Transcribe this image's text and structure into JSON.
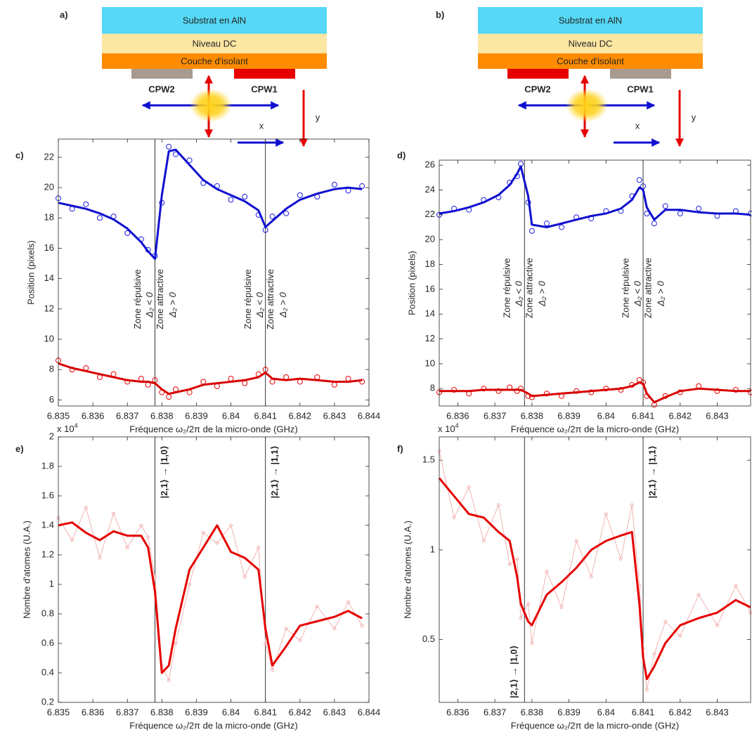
{
  "diagrams": [
    {
      "label": "a)",
      "layers": [
        "Substrat en AlN",
        "Niveau DC",
        "Couche d'isolant"
      ],
      "electrodes": [
        "CPW2",
        "CPW1"
      ],
      "electrode_colors": [
        "#a89a8f",
        "#e60000"
      ],
      "axis_x": "x",
      "axis_y": "y"
    },
    {
      "label": "b)",
      "layers": [
        "Substrat en AlN",
        "Niveau DC",
        "Couche d'isolant"
      ],
      "electrodes": [
        "CPW2",
        "CPW1"
      ],
      "electrode_colors": [
        "#e60000",
        "#a89a8f"
      ],
      "axis_x": "x",
      "axis_y": "y"
    }
  ],
  "chart_data": [
    {
      "type": "line",
      "label": "c)",
      "xlabel": "Fréquence ω₂/2π de la micro-onde (GHz)",
      "ylabel": "Position (pixels)",
      "xlim": [
        6.835,
        6.844
      ],
      "ylim": [
        5.6,
        23.2
      ],
      "xticks": [
        6.835,
        6.836,
        6.837,
        6.838,
        6.839,
        6.84,
        6.841,
        6.842,
        6.843,
        6.844
      ],
      "yticks": [
        6,
        8,
        10,
        12,
        14,
        16,
        18,
        20,
        22
      ],
      "vlines": [
        6.8378,
        6.841
      ],
      "annotation_colors": [
        "#000000",
        "#e60000"
      ],
      "annotations": [
        [
          {
            "text": "Zone répulsive",
            "sub": "Δ₂ < 0"
          },
          {
            "text": "Zone attractive",
            "sub": "Δ₂ > 0"
          }
        ],
        [
          {
            "text": "Zone répulsive",
            "sub": "Δ₂ < 0"
          },
          {
            "text": "Zone attractive",
            "sub": "Δ₂ > 0"
          }
        ]
      ],
      "x": [
        6.835,
        6.8354,
        6.8358,
        6.8362,
        6.8366,
        6.837,
        6.8374,
        6.8376,
        6.8378,
        6.838,
        6.8382,
        6.8384,
        6.8388,
        6.8392,
        6.8396,
        6.84,
        6.8404,
        6.8408,
        6.841,
        6.8412,
        6.8416,
        6.842,
        6.8425,
        6.843,
        6.8434,
        6.8438
      ],
      "series": [
        {
          "color": "#1f1fe0",
          "style": "markers",
          "values": [
            19.3,
            18.6,
            18.9,
            18.0,
            18.1,
            17.0,
            16.6,
            15.9,
            15.5,
            19.0,
            22.7,
            22.2,
            21.8,
            20.3,
            20.1,
            19.2,
            19.4,
            18.2,
            17.2,
            18.1,
            18.3,
            19.5,
            19.4,
            20.2,
            19.8,
            20.1
          ]
        },
        {
          "color": "#1010d0",
          "style": "line",
          "values": [
            19.0,
            18.8,
            18.6,
            18.3,
            17.9,
            17.3,
            16.4,
            15.8,
            15.3,
            19.5,
            22.4,
            22.5,
            21.5,
            20.5,
            19.9,
            19.5,
            19.1,
            18.5,
            17.4,
            17.8,
            18.6,
            19.2,
            19.6,
            19.9,
            20.0,
            19.9
          ]
        },
        {
          "color": "#e60000",
          "style": "markers",
          "values": [
            8.6,
            8.0,
            8.1,
            7.5,
            7.7,
            7.2,
            7.4,
            7.0,
            7.3,
            6.5,
            6.2,
            6.7,
            6.5,
            7.2,
            6.9,
            7.4,
            7.1,
            7.7,
            8.0,
            7.2,
            7.5,
            7.2,
            7.5,
            7.0,
            7.4,
            7.2
          ]
        },
        {
          "color": "#d80000",
          "style": "line",
          "values": [
            8.4,
            8.1,
            7.9,
            7.7,
            7.5,
            7.3,
            7.2,
            7.2,
            7.1,
            6.7,
            6.4,
            6.5,
            6.7,
            7.0,
            7.1,
            7.2,
            7.3,
            7.5,
            7.8,
            7.4,
            7.3,
            7.4,
            7.3,
            7.2,
            7.2,
            7.3
          ]
        }
      ]
    },
    {
      "type": "line",
      "label": "d)",
      "xlabel": "Fréquence ω₂/2π de la micro-onde (GHz)",
      "ylabel": "Position (pixels)",
      "xlim": [
        6.8355,
        6.8439
      ],
      "ylim": [
        6.6,
        26.4
      ],
      "xticks": [
        6.836,
        6.837,
        6.838,
        6.839,
        6.84,
        6.841,
        6.842,
        6.843
      ],
      "yticks": [
        8,
        10,
        12,
        14,
        16,
        18,
        20,
        22,
        24,
        26
      ],
      "vlines": [
        6.8378,
        6.841
      ],
      "annotation_colors": [
        "#000000",
        "#e60000"
      ],
      "annotations": [
        [
          {
            "text": "Zone répulsive",
            "sub": "Δ₂ < 0"
          },
          {
            "text": "Zone attractive",
            "sub": "Δ₂ > 0"
          }
        ],
        [
          {
            "text": "Zone répulsive",
            "sub": "Δ₂ < 0"
          },
          {
            "text": "Zone attractive",
            "sub": "Δ₂ > 0"
          }
        ]
      ],
      "x": [
        6.8355,
        6.8359,
        6.8363,
        6.8367,
        6.8371,
        6.8374,
        6.8376,
        6.8377,
        6.8379,
        6.838,
        6.8384,
        6.8388,
        6.8392,
        6.8396,
        6.84,
        6.8404,
        6.8407,
        6.8409,
        6.841,
        6.8411,
        6.8413,
        6.8416,
        6.842,
        6.8425,
        6.843,
        6.8435,
        6.8439
      ],
      "series": [
        {
          "color": "#1f1fe0",
          "style": "markers",
          "values": [
            22.0,
            22.5,
            22.4,
            23.2,
            23.4,
            24.6,
            25.1,
            26.1,
            23.0,
            20.7,
            21.3,
            21.0,
            21.8,
            21.7,
            22.3,
            22.3,
            23.5,
            24.8,
            24.3,
            22.1,
            21.3,
            22.7,
            22.1,
            22.5,
            21.9,
            22.3,
            22.1
          ]
        },
        {
          "color": "#1010d0",
          "style": "line",
          "values": [
            22.1,
            22.3,
            22.6,
            23.0,
            23.6,
            24.4,
            25.3,
            25.9,
            23.5,
            21.2,
            21.0,
            21.3,
            21.6,
            21.9,
            22.1,
            22.5,
            23.2,
            24.2,
            24.0,
            22.6,
            21.6,
            22.4,
            22.4,
            22.2,
            22.1,
            22.1,
            22.0
          ]
        },
        {
          "color": "#e60000",
          "style": "markers",
          "values": [
            7.7,
            7.9,
            7.6,
            8.0,
            7.8,
            8.1,
            7.8,
            8.0,
            7.4,
            7.3,
            7.6,
            7.4,
            7.8,
            7.7,
            8.0,
            7.9,
            8.3,
            8.7,
            8.5,
            7.4,
            6.7,
            7.4,
            7.7,
            8.2,
            7.8,
            7.9,
            7.7
          ]
        },
        {
          "color": "#d80000",
          "style": "line",
          "values": [
            7.8,
            7.8,
            7.8,
            7.9,
            7.9,
            7.9,
            7.9,
            7.9,
            7.6,
            7.4,
            7.5,
            7.6,
            7.7,
            7.8,
            7.9,
            8.0,
            8.2,
            8.5,
            8.4,
            7.6,
            6.9,
            7.3,
            7.8,
            8.0,
            7.9,
            7.8,
            7.8
          ]
        }
      ]
    },
    {
      "type": "line",
      "label": "e)",
      "xlabel": "Fréquence ω₂/2π de la micro-onde (GHz)",
      "ylabel": "Nombre d'atomes (U.A.)",
      "y_multiplier": {
        "base": "x 10",
        "exponent": "4"
      },
      "xlim": [
        6.835,
        6.844
      ],
      "ylim": [
        0.2,
        2
      ],
      "xticks": [
        6.835,
        6.836,
        6.837,
        6.838,
        6.839,
        6.84,
        6.841,
        6.842,
        6.843,
        6.844
      ],
      "yticks": [
        0.2,
        0.4,
        0.6,
        0.8,
        1,
        1.2,
        1.4,
        1.6,
        1.8,
        2
      ],
      "vlines": [
        6.8378,
        6.841
      ],
      "transitions": [
        "|2,1⟩ → |1,0⟩",
        "|2,1⟩ → |1,1⟩"
      ],
      "x": [
        6.835,
        6.8354,
        6.8358,
        6.8362,
        6.8366,
        6.837,
        6.8374,
        6.8376,
        6.8378,
        6.838,
        6.8382,
        6.8384,
        6.8388,
        6.8392,
        6.8396,
        6.84,
        6.8404,
        6.8408,
        6.841,
        6.8412,
        6.8416,
        6.842,
        6.8425,
        6.843,
        6.8434,
        6.8438
      ],
      "series": [
        {
          "color": "#f2b3b3",
          "style": "line+markers",
          "values": [
            1.45,
            1.3,
            1.52,
            1.18,
            1.48,
            1.25,
            1.4,
            1.32,
            1.05,
            0.45,
            0.35,
            0.6,
            1.0,
            1.35,
            1.28,
            1.4,
            1.05,
            1.25,
            0.6,
            0.42,
            0.7,
            0.62,
            0.85,
            0.7,
            0.88,
            0.72
          ]
        },
        {
          "color": "#e60000",
          "style": "line",
          "values": [
            1.4,
            1.42,
            1.35,
            1.3,
            1.36,
            1.33,
            1.33,
            1.25,
            0.95,
            0.4,
            0.45,
            0.7,
            1.1,
            1.25,
            1.4,
            1.22,
            1.18,
            1.1,
            0.7,
            0.45,
            0.58,
            0.72,
            0.75,
            0.78,
            0.82,
            0.77
          ]
        }
      ]
    },
    {
      "type": "line",
      "label": "f)",
      "xlabel": "Fréquence ω₂/2π de la micro-onde (GHz)",
      "ylabel": "Nombre d'atomes (U.A.)",
      "y_multiplier": {
        "base": "x 10",
        "exponent": "4"
      },
      "xlim": [
        6.8355,
        6.8439
      ],
      "ylim": [
        0.15,
        1.63
      ],
      "xticks": [
        6.836,
        6.837,
        6.838,
        6.839,
        6.84,
        6.841,
        6.842,
        6.843
      ],
      "yticks": [
        0.5,
        1,
        1.5
      ],
      "vlines": [
        6.8378,
        6.841
      ],
      "transitions": [
        "|2,1⟩ → |1,0⟩",
        "|2,1⟩ → |1,1⟩"
      ],
      "x": [
        6.8355,
        6.8359,
        6.8363,
        6.8367,
        6.8371,
        6.8374,
        6.8376,
        6.8377,
        6.8379,
        6.838,
        6.8384,
        6.8388,
        6.8392,
        6.8396,
        6.84,
        6.8404,
        6.8407,
        6.8409,
        6.841,
        6.8411,
        6.8413,
        6.8416,
        6.842,
        6.8425,
        6.843,
        6.8435,
        6.8439
      ],
      "series": [
        {
          "color": "#f2b3b3",
          "style": "line+markers",
          "values": [
            1.55,
            1.18,
            1.35,
            1.05,
            1.25,
            0.92,
            0.95,
            0.62,
            0.7,
            0.48,
            0.88,
            0.68,
            1.05,
            0.85,
            1.2,
            0.95,
            1.25,
            0.8,
            0.45,
            0.22,
            0.42,
            0.6,
            0.52,
            0.75,
            0.58,
            0.8,
            0.65
          ]
        },
        {
          "color": "#e60000",
          "style": "line",
          "values": [
            1.4,
            1.3,
            1.2,
            1.18,
            1.1,
            1.05,
            0.85,
            0.7,
            0.6,
            0.58,
            0.75,
            0.82,
            0.9,
            1.0,
            1.05,
            1.08,
            1.1,
            0.7,
            0.4,
            0.28,
            0.35,
            0.48,
            0.58,
            0.62,
            0.65,
            0.72,
            0.68
          ]
        }
      ]
    }
  ]
}
